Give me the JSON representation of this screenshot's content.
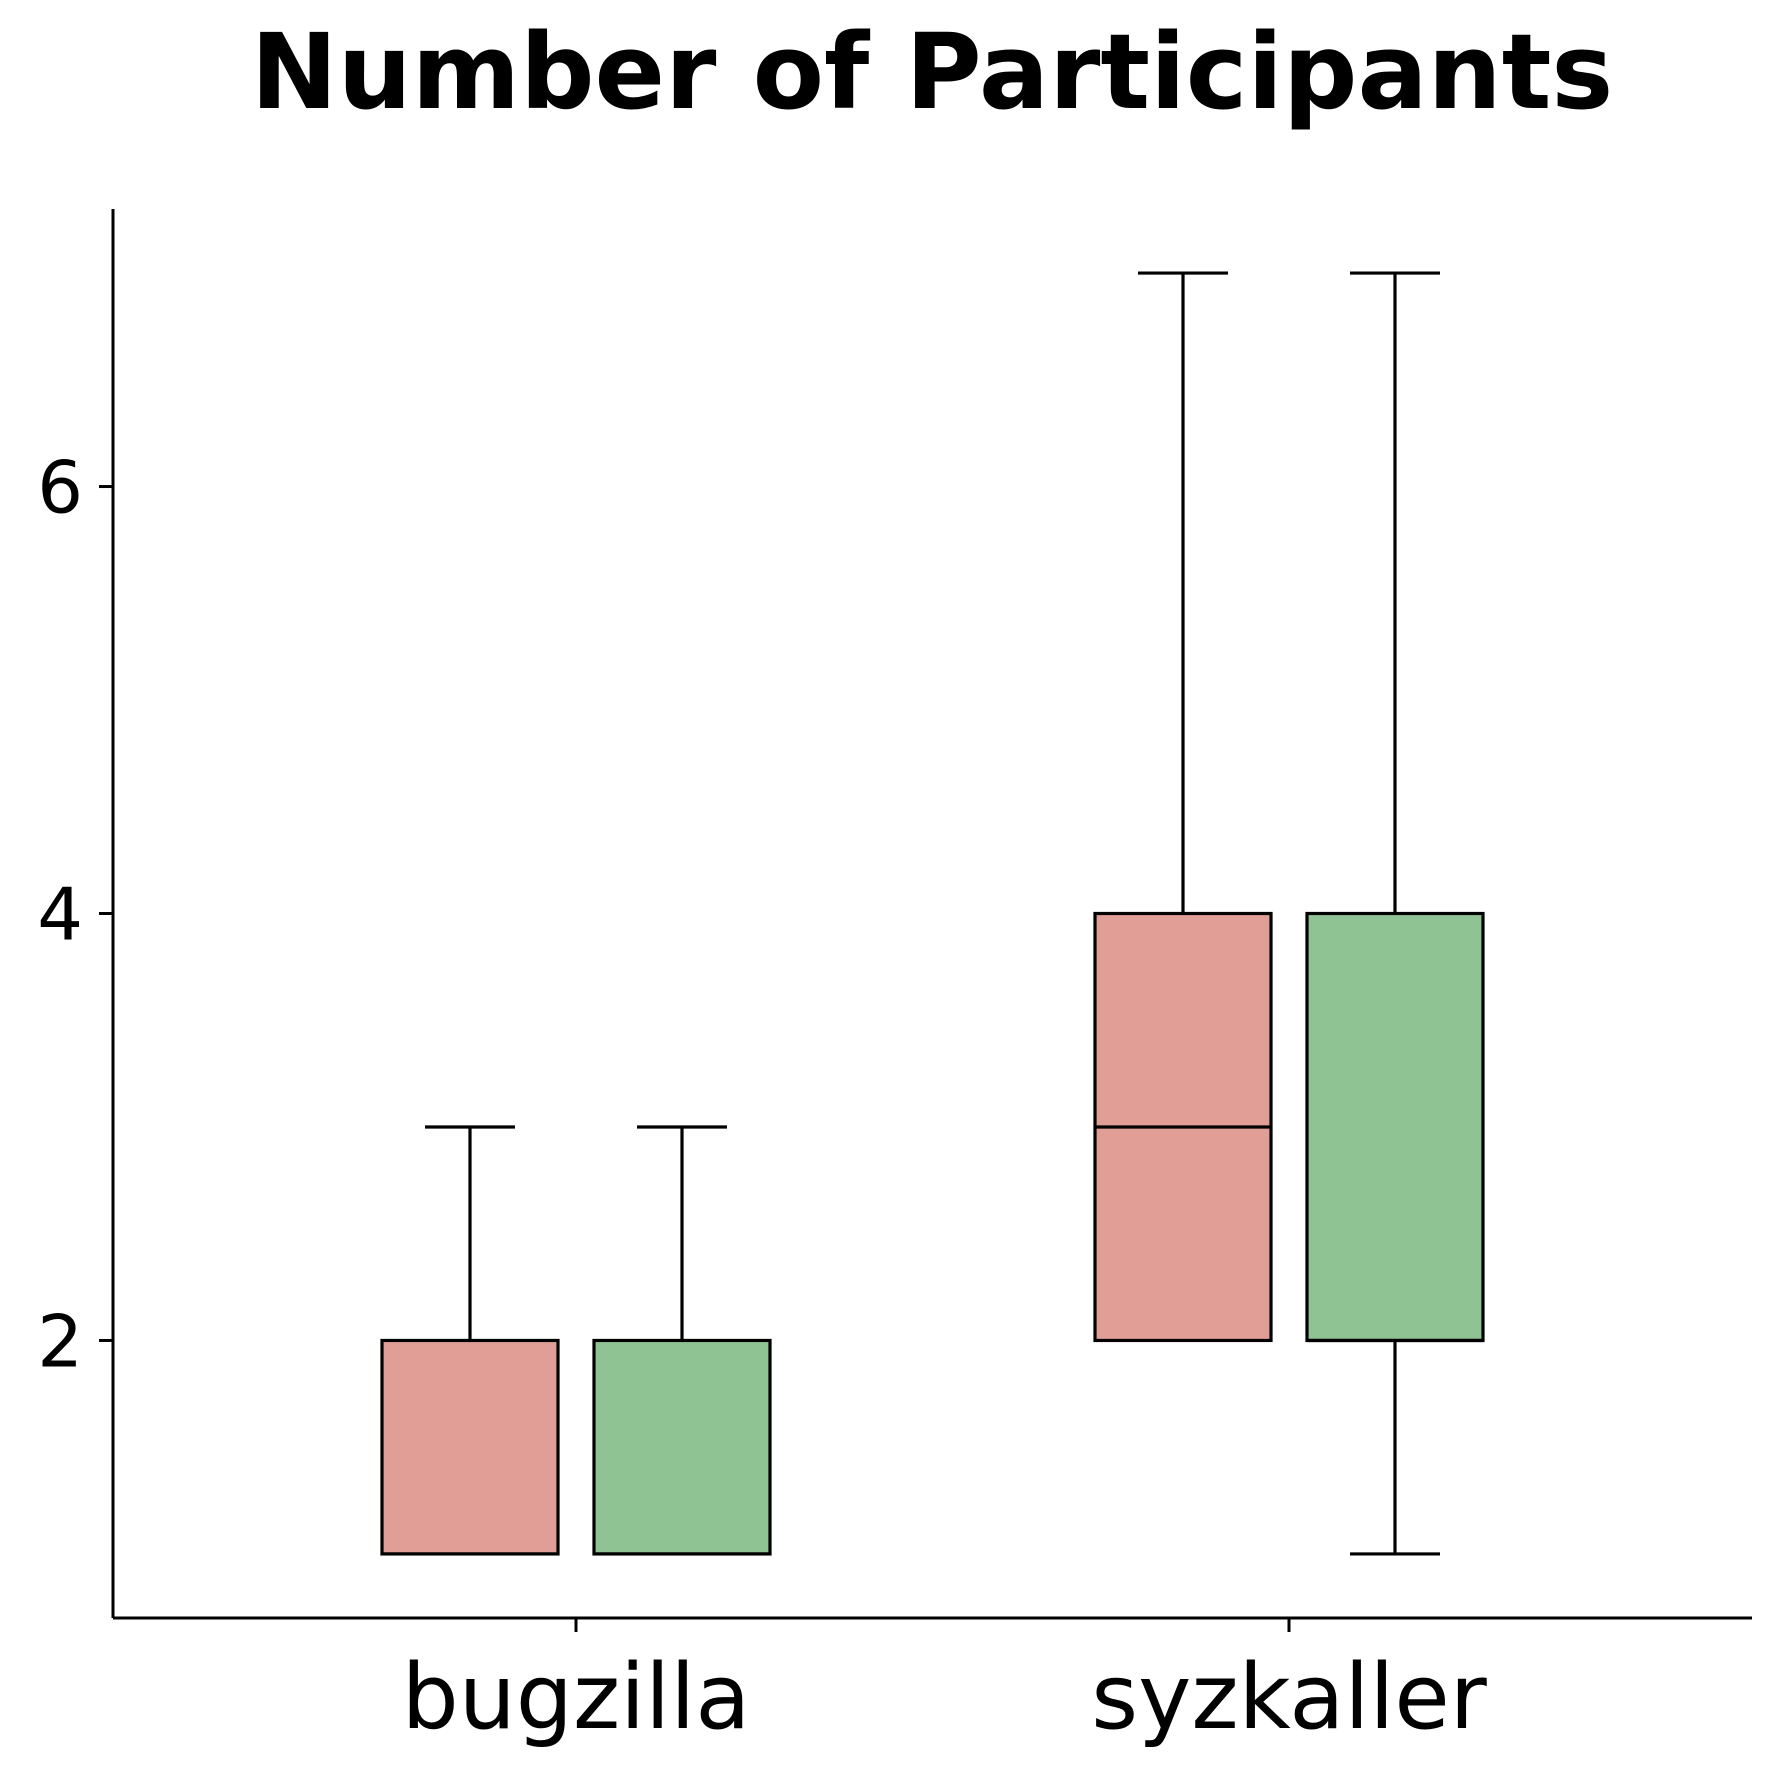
{
  "chart_data": {
    "type": "box",
    "title": "Number of Participants",
    "xlabel": "",
    "ylabel": "",
    "ylim": [
      0.7,
      7.3
    ],
    "yticks": [
      2,
      4,
      6
    ],
    "ytick_labels": [
      "2",
      "4",
      "6"
    ],
    "categories": [
      "bugzilla",
      "syzkaller"
    ],
    "grid": false,
    "legend": "none",
    "series": [
      {
        "color": "#e09e96",
        "boxes": [
          {
            "category": "bugzilla",
            "whisker_low": 1,
            "q1": 1,
            "median": 1,
            "q3": 2,
            "whisker_high": 3
          },
          {
            "category": "syzkaller",
            "whisker_low": 2,
            "q1": 2,
            "median": 3,
            "q3": 4,
            "whisker_high": 7
          }
        ]
      },
      {
        "color": "#8fc394",
        "boxes": [
          {
            "category": "bugzilla",
            "whisker_low": 1,
            "q1": 1,
            "median": 1,
            "q3": 2,
            "whisker_high": 3
          },
          {
            "category": "syzkaller",
            "whisker_low": 1,
            "q1": 2,
            "median": 2,
            "q3": 4,
            "whisker_high": 7
          }
        ]
      }
    ]
  }
}
